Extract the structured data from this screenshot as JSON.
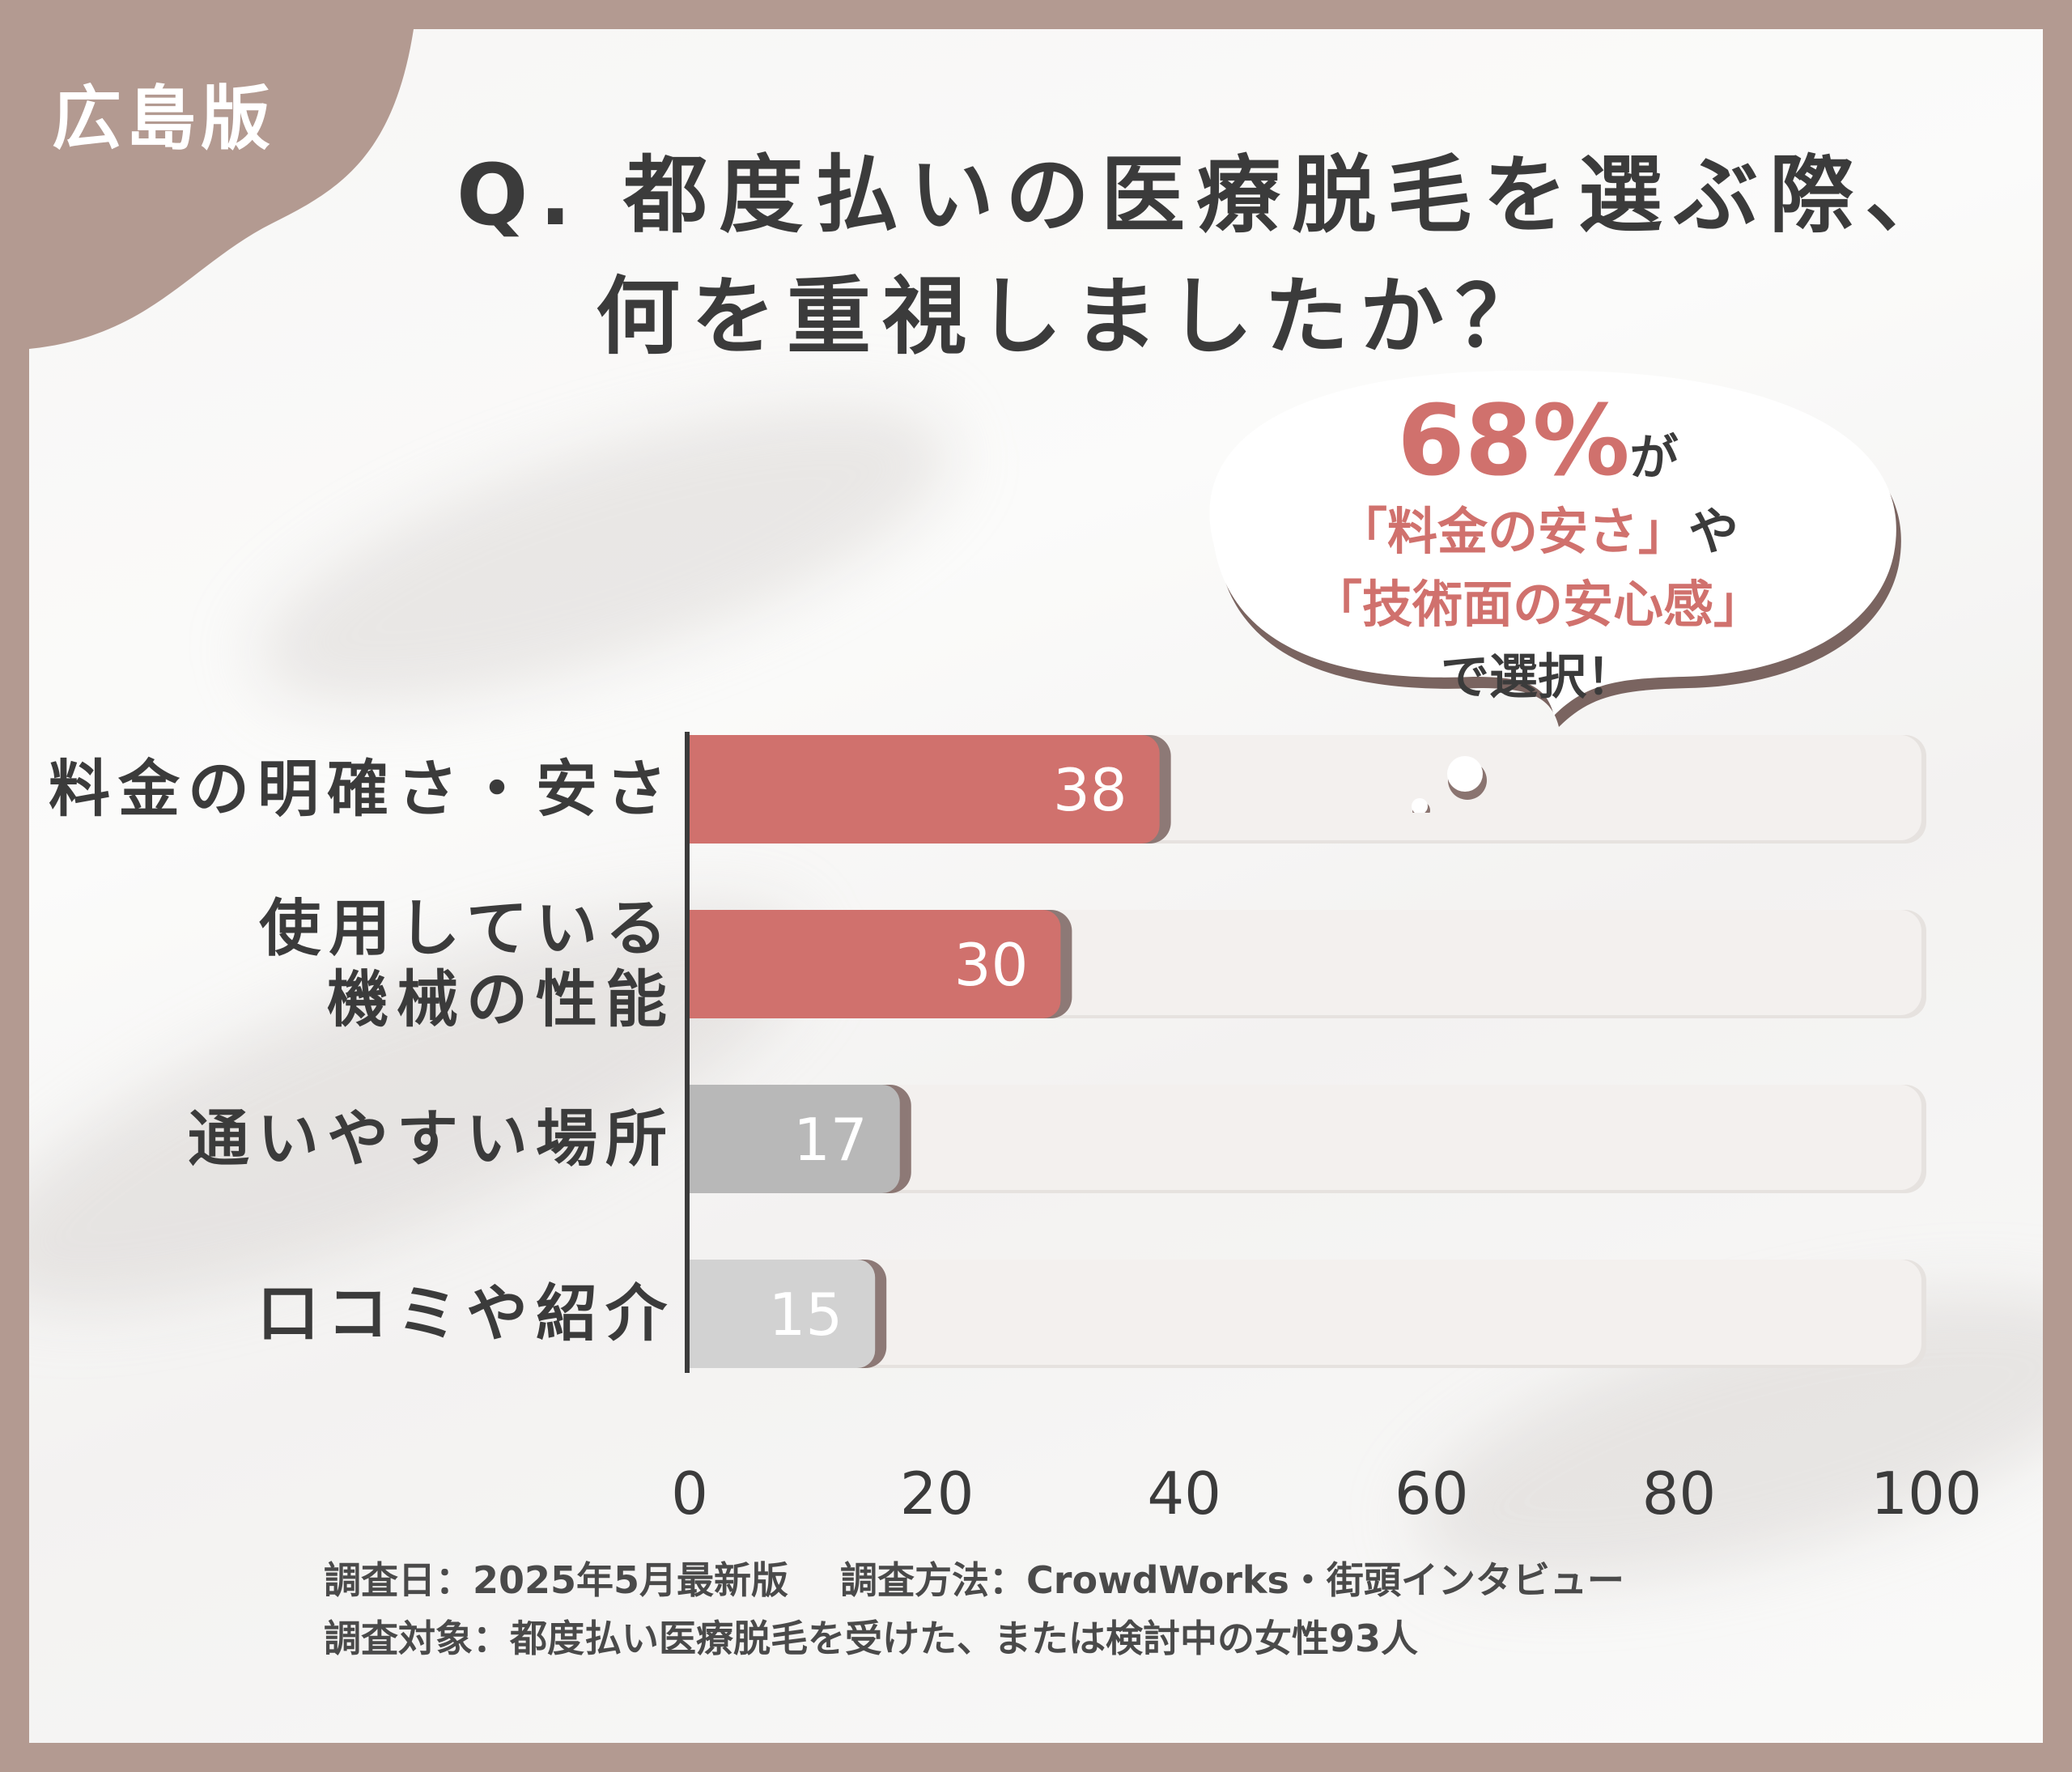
{
  "region_label": "広島版",
  "title": {
    "line1": "Q. 都度払いの医療脱毛を選ぶ際、",
    "line2": "何を重視しましたか？"
  },
  "callout": {
    "percent": "68%",
    "percent_suffix": "が",
    "line2_highlight": "「料金の安さ」",
    "line2_suffix": "や",
    "line3_highlight": "「技術面の安心感」",
    "line4": "で選択！"
  },
  "footer": {
    "survey_date": "調査日：2025年5月最新版",
    "survey_method": "調査方法：CrowdWorks・街頭インタビュー",
    "survey_target": "調査対象：都度払い医療脱毛を受けた、または検討中の女性93人"
  },
  "colors": {
    "frame": "#b39a91",
    "highlight_bar": "#d0716d",
    "muted_bar_1": "#b8b8b8",
    "muted_bar_2": "#d2d2d2",
    "track": "#f3f0ee",
    "text": "#3b3b3b",
    "accent_text": "#d0716d"
  },
  "chart_data": {
    "type": "bar",
    "orientation": "horizontal",
    "categories": [
      [
        "料金の明確さ・安さ"
      ],
      [
        "使用している",
        "機械の性能"
      ],
      [
        "通いやすい場所"
      ],
      [
        "口コミや紹介"
      ]
    ],
    "values": [
      38,
      30,
      17,
      15
    ],
    "value_labels": [
      "38",
      "30",
      "17",
      "15"
    ],
    "bar_colors": [
      "#d0716d",
      "#d0716d",
      "#b8b8b8",
      "#d2d2d2"
    ],
    "xlim": [
      0,
      100
    ],
    "xticks": [
      "0",
      "20",
      "40",
      "60",
      "80",
      "100"
    ],
    "title": "",
    "xlabel": "",
    "ylabel": "",
    "grid": false,
    "legend": "none"
  }
}
